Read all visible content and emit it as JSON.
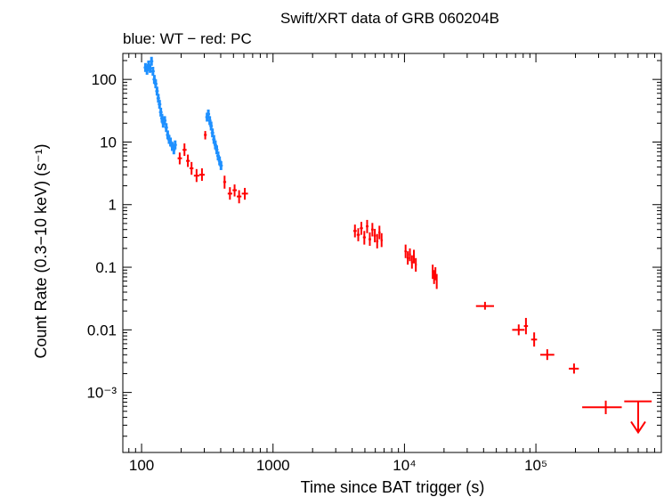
{
  "chart_data": {
    "type": "scatter",
    "title": "Swift/XRT data of GRB 060204B",
    "subtitle": "blue: WT − red: PC",
    "xlabel": "Time since BAT trigger (s)",
    "ylabel": "Count Rate (0.3−10 keV) (s⁻¹)",
    "x_scale": "log",
    "y_scale": "log",
    "xlim": [
      72,
      900000
    ],
    "ylim": [
      0.00011,
      260
    ],
    "x_ticks": [
      {
        "value": 100,
        "label": "100"
      },
      {
        "value": 1000,
        "label": "1000"
      },
      {
        "value": 10000,
        "label": "10⁴"
      },
      {
        "value": 100000,
        "label": "10⁵"
      }
    ],
    "y_ticks": [
      {
        "value": 100,
        "label": "100"
      },
      {
        "value": 10,
        "label": "10"
      },
      {
        "value": 1,
        "label": "1"
      },
      {
        "value": 0.1,
        "label": "0.1"
      },
      {
        "value": 0.01,
        "label": "0.01"
      },
      {
        "value": 0.001,
        "label": "10⁻³"
      }
    ],
    "series": [
      {
        "name": "WT",
        "color": "#1e90ff",
        "points": [
          {
            "x": 107,
            "y": 155
          },
          {
            "x": 110,
            "y": 140
          },
          {
            "x": 113,
            "y": 170
          },
          {
            "x": 116,
            "y": 150
          },
          {
            "x": 119,
            "y": 195
          },
          {
            "x": 122,
            "y": 135
          },
          {
            "x": 125,
            "y": 100
          },
          {
            "x": 128,
            "y": 85
          },
          {
            "x": 131,
            "y": 65
          },
          {
            "x": 134,
            "y": 50
          },
          {
            "x": 137,
            "y": 40
          },
          {
            "x": 140,
            "y": 30
          },
          {
            "x": 143,
            "y": 24
          },
          {
            "x": 146,
            "y": 20
          },
          {
            "x": 150,
            "y": 22
          },
          {
            "x": 154,
            "y": 17
          },
          {
            "x": 158,
            "y": 13
          },
          {
            "x": 162,
            "y": 11
          },
          {
            "x": 166,
            "y": 10
          },
          {
            "x": 171,
            "y": 8.5
          },
          {
            "x": 176,
            "y": 7.5
          },
          {
            "x": 180,
            "y": 9
          },
          {
            "x": 315,
            "y": 25
          },
          {
            "x": 322,
            "y": 28
          },
          {
            "x": 330,
            "y": 22
          },
          {
            "x": 338,
            "y": 18
          },
          {
            "x": 346,
            "y": 14
          },
          {
            "x": 355,
            "y": 11
          },
          {
            "x": 364,
            "y": 9
          },
          {
            "x": 373,
            "y": 7.5
          },
          {
            "x": 382,
            "y": 6
          },
          {
            "x": 392,
            "y": 5
          },
          {
            "x": 402,
            "y": 4.2
          }
        ]
      },
      {
        "name": "PC",
        "color": "#ff0000",
        "points": [
          {
            "x": 195,
            "y": 5.5,
            "xlo": 188,
            "xhi": 203,
            "ylo": 4.4,
            "yhi": 6.8
          },
          {
            "x": 212,
            "y": 7.5,
            "xlo": 205,
            "xhi": 220,
            "ylo": 6.0,
            "yhi": 9.5
          },
          {
            "x": 225,
            "y": 5.0,
            "xlo": 218,
            "xhi": 233,
            "ylo": 4.0,
            "yhi": 6.3
          },
          {
            "x": 240,
            "y": 3.8,
            "xlo": 232,
            "xhi": 248,
            "ylo": 3.0,
            "yhi": 4.8
          },
          {
            "x": 262,
            "y": 2.9,
            "xlo": 250,
            "xhi": 275,
            "ylo": 2.3,
            "yhi": 3.7
          },
          {
            "x": 288,
            "y": 3.0,
            "xlo": 275,
            "xhi": 302,
            "ylo": 2.4,
            "yhi": 3.8
          },
          {
            "x": 305,
            "y": 13,
            "xlo": 298,
            "xhi": 313,
            "ylo": 11,
            "yhi": 15
          },
          {
            "x": 428,
            "y": 2.3,
            "xlo": 418,
            "xhi": 440,
            "ylo": 1.8,
            "yhi": 2.9
          },
          {
            "x": 470,
            "y": 1.5,
            "xlo": 452,
            "xhi": 490,
            "ylo": 1.2,
            "yhi": 1.9
          },
          {
            "x": 510,
            "y": 1.7,
            "xlo": 492,
            "xhi": 530,
            "ylo": 1.35,
            "yhi": 2.1
          },
          {
            "x": 552,
            "y": 1.35,
            "xlo": 530,
            "xhi": 575,
            "ylo": 1.05,
            "yhi": 1.7
          },
          {
            "x": 610,
            "y": 1.5,
            "xlo": 578,
            "xhi": 645,
            "ylo": 1.2,
            "yhi": 1.85
          },
          {
            "x": 4200,
            "y": 0.38,
            "xlo": 4080,
            "xhi": 4330,
            "ylo": 0.3,
            "yhi": 0.48
          },
          {
            "x": 4450,
            "y": 0.33,
            "xlo": 4330,
            "xhi": 4580,
            "ylo": 0.26,
            "yhi": 0.42
          },
          {
            "x": 4700,
            "y": 0.42,
            "xlo": 4580,
            "xhi": 4830,
            "ylo": 0.33,
            "yhi": 0.53
          },
          {
            "x": 4950,
            "y": 0.3,
            "xlo": 4830,
            "xhi": 5080,
            "ylo": 0.23,
            "yhi": 0.38
          },
          {
            "x": 5200,
            "y": 0.45,
            "xlo": 5080,
            "xhi": 5330,
            "ylo": 0.35,
            "yhi": 0.57
          },
          {
            "x": 5450,
            "y": 0.28,
            "xlo": 5330,
            "xhi": 5580,
            "ylo": 0.22,
            "yhi": 0.36
          },
          {
            "x": 5700,
            "y": 0.4,
            "xlo": 5580,
            "xhi": 5830,
            "ylo": 0.31,
            "yhi": 0.51
          },
          {
            "x": 5950,
            "y": 0.32,
            "xlo": 5830,
            "xhi": 6080,
            "ylo": 0.25,
            "yhi": 0.41
          },
          {
            "x": 6200,
            "y": 0.26,
            "xlo": 6080,
            "xhi": 6330,
            "ylo": 0.2,
            "yhi": 0.34
          },
          {
            "x": 6450,
            "y": 0.36,
            "xlo": 6330,
            "xhi": 6580,
            "ylo": 0.28,
            "yhi": 0.46
          },
          {
            "x": 6700,
            "y": 0.27,
            "xlo": 6580,
            "xhi": 6830,
            "ylo": 0.21,
            "yhi": 0.35
          },
          {
            "x": 10200,
            "y": 0.18,
            "xlo": 10000,
            "xhi": 10400,
            "ylo": 0.14,
            "yhi": 0.23
          },
          {
            "x": 10600,
            "y": 0.14,
            "xlo": 10400,
            "xhi": 10800,
            "ylo": 0.11,
            "yhi": 0.18
          },
          {
            "x": 11000,
            "y": 0.16,
            "xlo": 10800,
            "xhi": 11200,
            "ylo": 0.125,
            "yhi": 0.2
          },
          {
            "x": 11400,
            "y": 0.12,
            "xlo": 11200,
            "xhi": 11600,
            "ylo": 0.095,
            "yhi": 0.155
          },
          {
            "x": 11800,
            "y": 0.15,
            "xlo": 11600,
            "xhi": 12000,
            "ylo": 0.115,
            "yhi": 0.19
          },
          {
            "x": 12200,
            "y": 0.11,
            "xlo": 12000,
            "xhi": 12400,
            "ylo": 0.085,
            "yhi": 0.14
          },
          {
            "x": 16400,
            "y": 0.085,
            "xlo": 16200,
            "xhi": 16600,
            "ylo": 0.065,
            "yhi": 0.11
          },
          {
            "x": 16800,
            "y": 0.07,
            "xlo": 16600,
            "xhi": 17000,
            "ylo": 0.054,
            "yhi": 0.09
          },
          {
            "x": 17200,
            "y": 0.08,
            "xlo": 17000,
            "xhi": 17400,
            "ylo": 0.062,
            "yhi": 0.1
          },
          {
            "x": 17600,
            "y": 0.06,
            "xlo": 17400,
            "xhi": 17800,
            "ylo": 0.045,
            "yhi": 0.078
          },
          {
            "x": 41000,
            "y": 0.024,
            "xlo": 35000,
            "xhi": 48000,
            "ylo": 0.021,
            "yhi": 0.028
          },
          {
            "x": 74000,
            "y": 0.01,
            "xlo": 66000,
            "xhi": 82000,
            "ylo": 0.0082,
            "yhi": 0.0122
          },
          {
            "x": 84000,
            "y": 0.0115,
            "xlo": 81000,
            "xhi": 87000,
            "ylo": 0.0085,
            "yhi": 0.0155
          },
          {
            "x": 97000,
            "y": 0.007,
            "xlo": 92000,
            "xhi": 102000,
            "ylo": 0.0054,
            "yhi": 0.0091
          },
          {
            "x": 122000,
            "y": 0.004,
            "xlo": 108000,
            "xhi": 138000,
            "ylo": 0.0033,
            "yhi": 0.0049
          },
          {
            "x": 195000,
            "y": 0.0024,
            "xlo": 178000,
            "xhi": 212000,
            "ylo": 0.002,
            "yhi": 0.0029
          },
          {
            "x": 340000,
            "y": 0.00058,
            "xlo": 225000,
            "xhi": 450000,
            "ylo": 0.00045,
            "yhi": 0.00074
          }
        ]
      },
      {
        "name": "PC upper limit",
        "color": "#ff0000",
        "upper_limits": [
          {
            "x": 600000,
            "y": 0.00072,
            "xlo": 470000,
            "xhi": 760000,
            "arrow_to": 0.00023
          }
        ]
      }
    ]
  }
}
